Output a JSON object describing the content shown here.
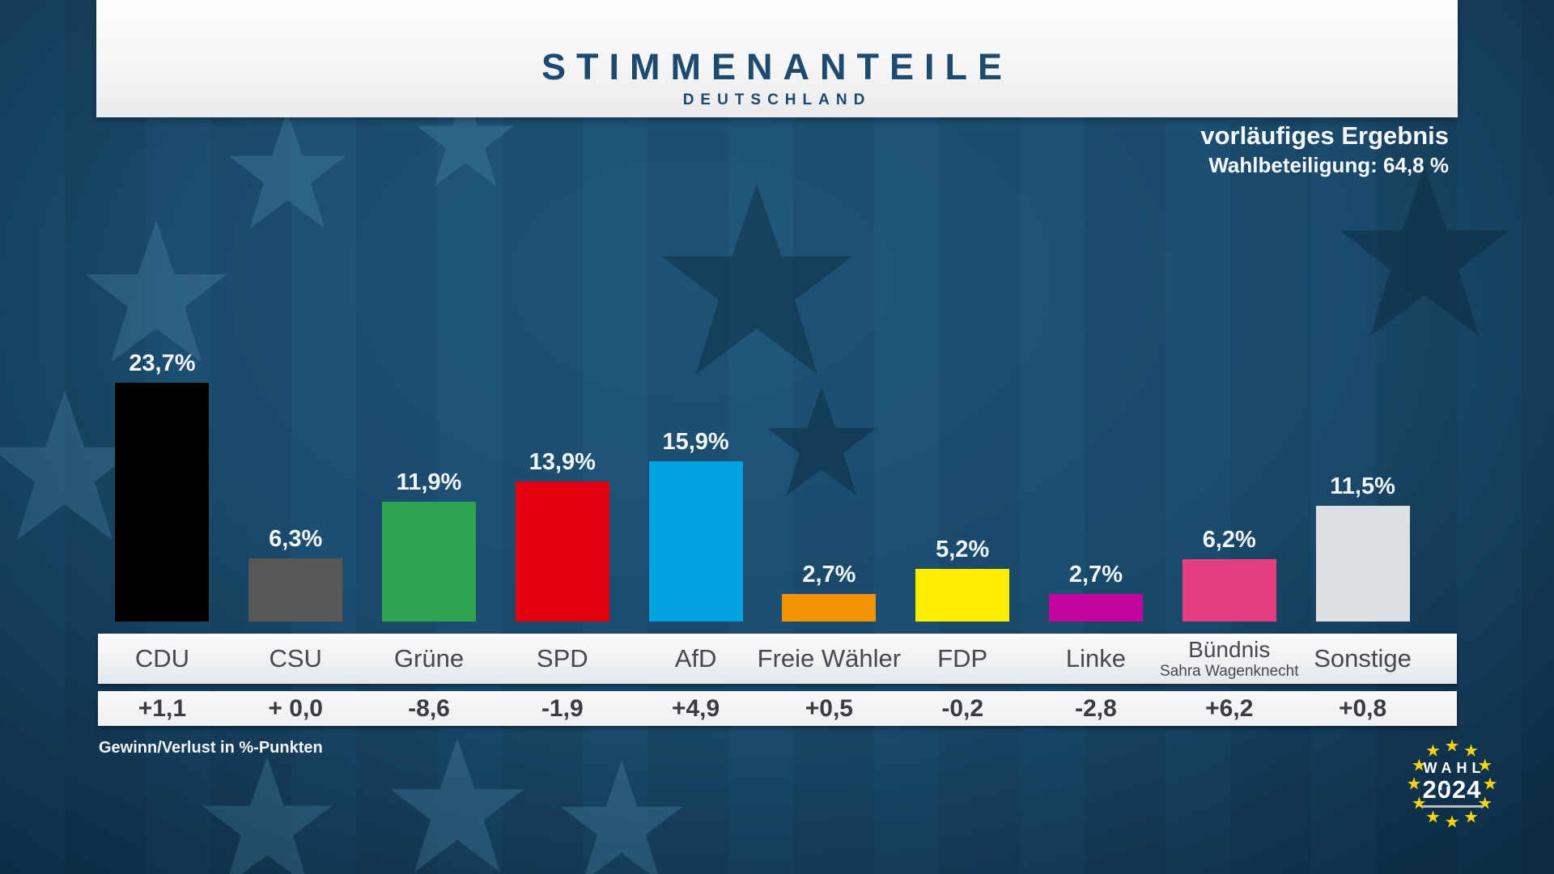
{
  "header": {
    "title": "STIMMENANTEILE",
    "subtitle": "DEUTSCHLAND"
  },
  "status": {
    "result_label": "vorläufiges Ergebnis",
    "turnout_label": "Wahlbeteiligung: 64,8 %"
  },
  "footnote": "Gewinn/Verlust in %-Punkten",
  "logo": {
    "top": "WAHL",
    "year_prefix": "2",
    "year_zero": "0",
    "year_suffix": "24",
    "check": "✓",
    "star_glyph": "★",
    "star_color": "#f3d411"
  },
  "colors": {
    "background_top": "#1f5679",
    "background_bottom": "#113853",
    "header_text": "#1d4a6e",
    "value_label_text": "#f2f4f6",
    "band_text": "#48494c",
    "change_text": "#3b3c3f"
  },
  "chart_data": {
    "type": "bar",
    "title": "Stimmenanteile Deutschland",
    "note": "vorläufiges Ergebnis, Wahlbeteiligung 64,8 %",
    "unit": "%",
    "ylim": [
      0,
      25
    ],
    "grid": false,
    "legend": false,
    "categories": [
      "CDU",
      "CSU",
      "Grüne",
      "SPD",
      "AfD",
      "Freie Wähler",
      "FDP",
      "Linke",
      "Bündnis Sahra Wagenknecht",
      "Sonstige"
    ],
    "values": [
      23.7,
      6.3,
      11.9,
      13.9,
      15.9,
      2.7,
      5.2,
      2.7,
      6.2,
      11.5
    ],
    "changes_in_points": [
      1.1,
      0.0,
      -8.6,
      -1.9,
      4.9,
      0.5,
      -0.2,
      -2.8,
      6.2,
      0.8
    ],
    "parties": [
      {
        "id": "cdu",
        "name": "CDU",
        "sub": "",
        "value_label": "23,7%",
        "change_label": "+1,1",
        "color": "#000000"
      },
      {
        "id": "csu",
        "name": "CSU",
        "sub": "",
        "value_label": "6,3%",
        "change_label": "+ 0,0",
        "color": "#575757"
      },
      {
        "id": "gruene",
        "name": "Grüne",
        "sub": "",
        "value_label": "11,9%",
        "change_label": "-8,6",
        "color": "#2da24f"
      },
      {
        "id": "spd",
        "name": "SPD",
        "sub": "",
        "value_label": "13,9%",
        "change_label": "-1,9",
        "color": "#e3000f"
      },
      {
        "id": "afd",
        "name": "AfD",
        "sub": "",
        "value_label": "15,9%",
        "change_label": "+4,9",
        "color": "#00a2e1"
      },
      {
        "id": "freie-waehler",
        "name": "Freie Wähler",
        "sub": "",
        "value_label": "2,7%",
        "change_label": "+0,5",
        "color": "#f39204"
      },
      {
        "id": "fdp",
        "name": "FDP",
        "sub": "",
        "value_label": "5,2%",
        "change_label": "-0,2",
        "color": "#ffee00"
      },
      {
        "id": "linke",
        "name": "Linke",
        "sub": "",
        "value_label": "2,7%",
        "change_label": "-2,8",
        "color": "#c203a0"
      },
      {
        "id": "bsw",
        "name": "Bündnis",
        "sub": "Sahra Wagenknecht",
        "value_label": "6,2%",
        "change_label": "+6,2",
        "color": "#e53e81"
      },
      {
        "id": "sonstige",
        "name": "Sonstige",
        "sub": "",
        "value_label": "11,5%",
        "change_label": "+0,8",
        "color": "#dcdfe4"
      }
    ]
  }
}
